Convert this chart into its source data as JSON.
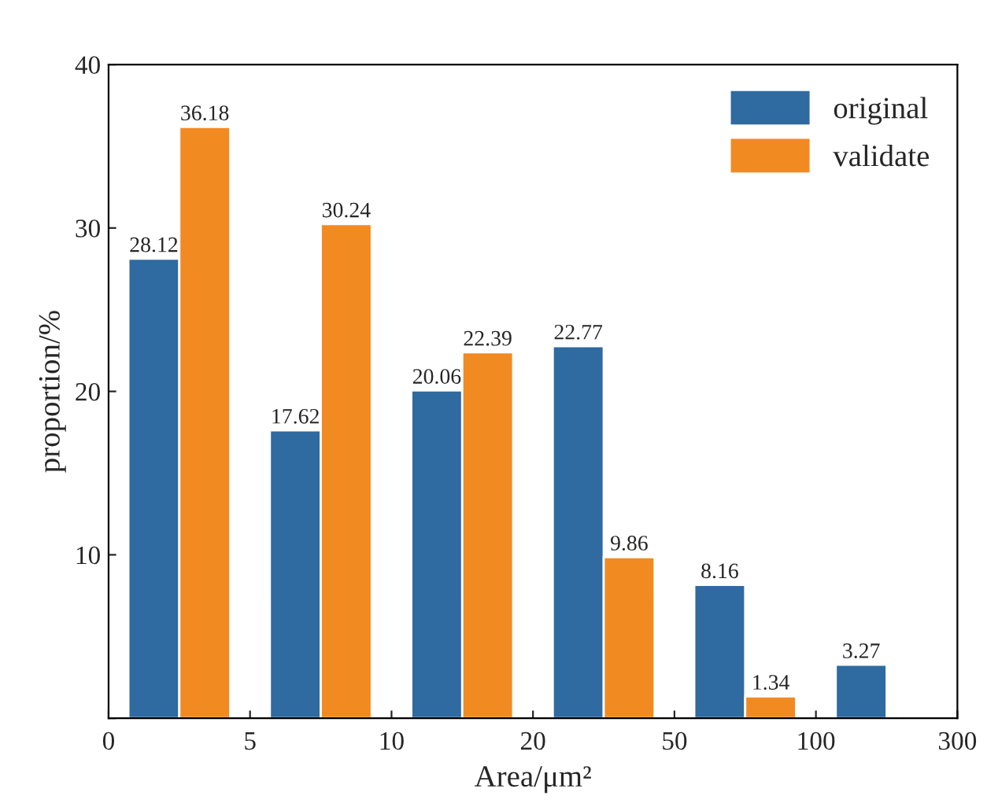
{
  "chart_data": {
    "type": "bar",
    "xlabel": "Area/μm²",
    "ylabel": "proportion/%",
    "categories": [
      null,
      null,
      null,
      null,
      null,
      null
    ],
    "annotations": [
      "0",
      "5",
      "10",
      "20",
      "50",
      "100",
      "300"
    ],
    "series": [
      {
        "name": "original",
        "color": "#2f6aa0",
        "values": [
          28.12,
          17.62,
          20.06,
          22.77,
          8.16,
          3.27
        ]
      },
      {
        "name": "validate",
        "color": "#f28a22",
        "values": [
          36.18,
          30.24,
          22.39,
          9.86,
          1.34,
          null
        ]
      }
    ],
    "ylim": [
      0,
      40
    ],
    "yticks": [
      {
        "value": 0,
        "label": null
      },
      10,
      20,
      30,
      40
    ],
    "data_labels": true,
    "legend": "top right",
    "grid": false
  }
}
